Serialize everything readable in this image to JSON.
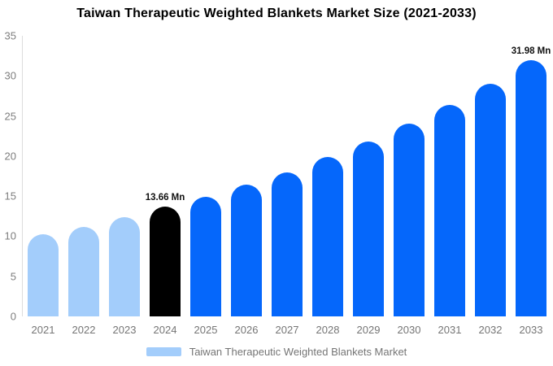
{
  "header": {
    "title": "Taiwan Therapeutic Weighted Blankets Market Size (2021-2033)"
  },
  "chart_data": {
    "type": "bar",
    "title": "Taiwan Therapeutic Weighted Blankets Market Size (2021-2033)",
    "categories": [
      "2021",
      "2022",
      "2023",
      "2024",
      "2025",
      "2026",
      "2027",
      "2028",
      "2029",
      "2030",
      "2031",
      "2032",
      "2033"
    ],
    "values": [
      10.2,
      11.2,
      12.35,
      13.66,
      14.9,
      16.4,
      17.95,
      19.85,
      21.8,
      24.0,
      26.4,
      29.0,
      31.98
    ],
    "bar_colors": [
      "#a3cdfb",
      "#a3cdfb",
      "#a3cdfb",
      "#000000",
      "#0567fb",
      "#0567fb",
      "#0567fb",
      "#0567fb",
      "#0567fb",
      "#0567fb",
      "#0567fb",
      "#0567fb",
      "#0567fb"
    ],
    "data_labels": {
      "2024": "13.66 Mn",
      "2033": "31.98 Mn"
    },
    "xlabel": "",
    "ylabel": "",
    "ylim": [
      0,
      35
    ],
    "yticks": [
      0,
      5,
      10,
      15,
      20,
      25,
      30,
      35
    ],
    "grid": false,
    "legend": {
      "position": "bottom-center",
      "entries": [
        {
          "label": "Taiwan Therapeutic Weighted Blankets Market",
          "color": "#a3cdfb"
        }
      ]
    }
  },
  "colors": {
    "accent_blue": "#0567fb",
    "light_blue": "#a3cdfb",
    "highlight_black": "#000000",
    "axis_text": "#7d7d7d",
    "legend_text": "#757575",
    "axis_line": "#dcdcdc",
    "background": "#ffffff"
  }
}
